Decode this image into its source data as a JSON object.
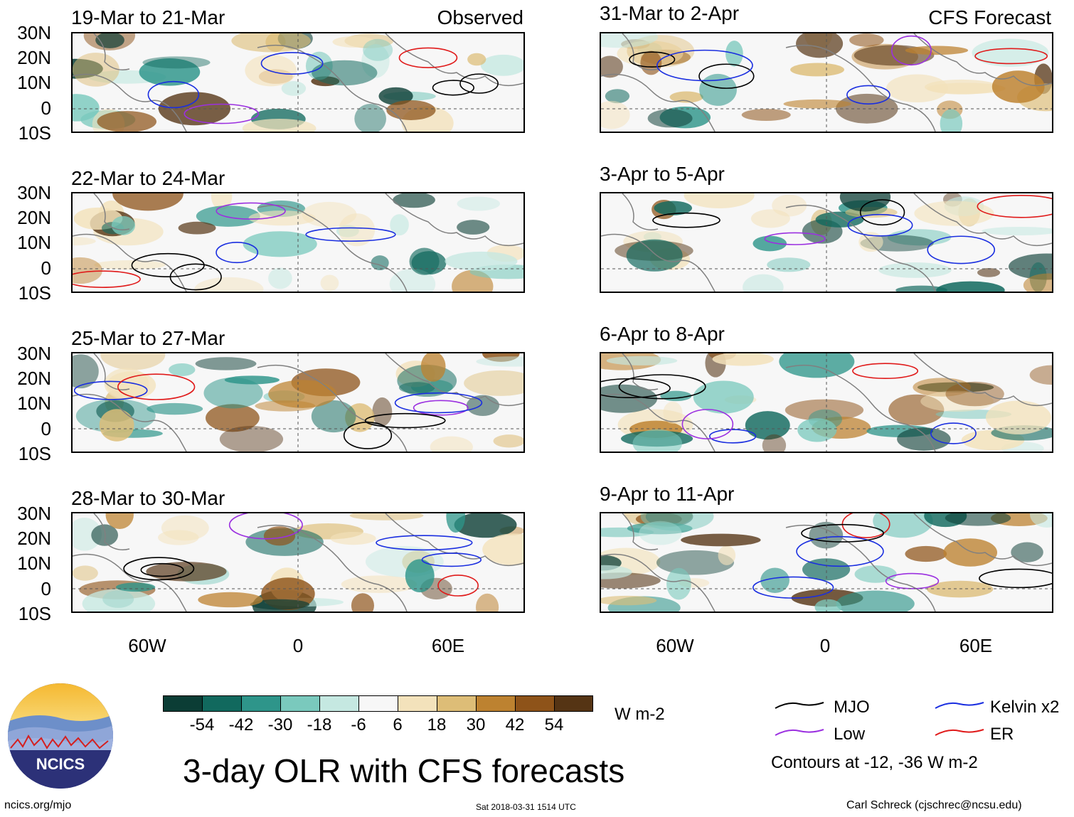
{
  "header": {
    "observed_label": "Observed",
    "forecast_label": "CFS Forecast"
  },
  "panels": {
    "left": [
      {
        "title": "19-Mar to 21-Mar"
      },
      {
        "title": "22-Mar to 24-Mar"
      },
      {
        "title": "25-Mar to 27-Mar"
      },
      {
        "title": "28-Mar to 30-Mar"
      }
    ],
    "right": [
      {
        "title": "31-Mar to 2-Apr"
      },
      {
        "title": "3-Apr to 5-Apr"
      },
      {
        "title": "6-Apr to 8-Apr"
      },
      {
        "title": "9-Apr to 11-Apr"
      }
    ]
  },
  "axes": {
    "lat_ticks": [
      "30N",
      "20N",
      "10N",
      "0",
      "10S"
    ],
    "lon_ticks": [
      "60W",
      "0",
      "60E"
    ]
  },
  "colorbar": {
    "colors": [
      "#0b3d35",
      "#11695e",
      "#2e958a",
      "#7ac9bd",
      "#c5e8e1",
      "#f7f7f7",
      "#f3e2bb",
      "#ddbd77",
      "#bd8230",
      "#8e5319",
      "#553414"
    ],
    "ticks": [
      "-54",
      "-42",
      "-30",
      "-18",
      "-6",
      "6",
      "18",
      "30",
      "42",
      "54"
    ],
    "units": "W m-2"
  },
  "legend": {
    "mjo": {
      "label": "MJO",
      "color": "#000000"
    },
    "kelvin": {
      "label": "Kelvin x2",
      "color": "#1a2ee0"
    },
    "low": {
      "label": "Low",
      "color": "#9b30e0"
    },
    "er": {
      "label": "ER",
      "color": "#e01a1a"
    },
    "contour_note": "Contours at -12, -36 W m-2"
  },
  "footer": {
    "logo_text": "NCICS",
    "website": "ncics.org/mjo",
    "timestamp": "Sat 2018-03-31 1514 UTC",
    "credit": "Carl Schreck (cjschrec@ncsu.edu)",
    "main_title": "3-day OLR with CFS forecasts"
  }
}
